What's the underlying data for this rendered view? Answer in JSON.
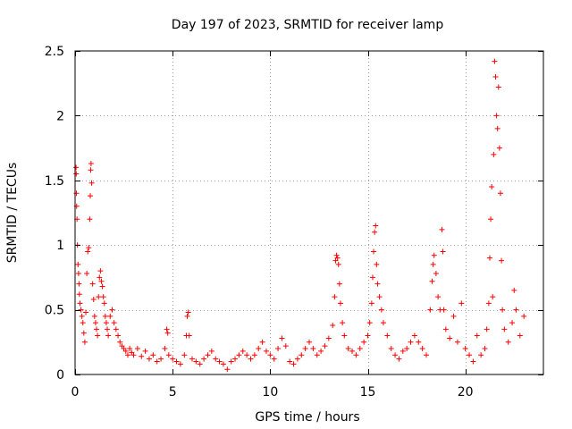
{
  "chart_data": {
    "type": "scatter",
    "title": "Day 197 of 2023, SRMTID for receiver lamp",
    "xlabel": "GPS time / hours",
    "ylabel": "SRMTID / TECUs",
    "xlim": [
      0,
      24
    ],
    "ylim": [
      0,
      2.5
    ],
    "xticks": [
      0,
      5,
      10,
      15,
      20
    ],
    "xtick_labels": [
      "0",
      "5",
      "10",
      "15",
      "20"
    ],
    "yticks": [
      0,
      0.5,
      1,
      1.5,
      2,
      2.5
    ],
    "ytick_labels": [
      "0",
      "0.5",
      "1",
      "1.5",
      "2",
      "2.5"
    ],
    "grid": true,
    "marker": "+",
    "series": [
      {
        "name": "SRMTID",
        "color": "#ff0000",
        "points": [
          [
            0.05,
            1.6
          ],
          [
            0.06,
            1.55
          ],
          [
            0.07,
            1.4
          ],
          [
            0.08,
            1.3
          ],
          [
            0.1,
            1.2
          ],
          [
            0.12,
            1.0
          ],
          [
            0.15,
            0.85
          ],
          [
            0.18,
            0.78
          ],
          [
            0.2,
            0.7
          ],
          [
            0.22,
            0.62
          ],
          [
            0.25,
            0.55
          ],
          [
            0.3,
            0.5
          ],
          [
            0.35,
            0.45
          ],
          [
            0.4,
            0.4
          ],
          [
            0.45,
            0.32
          ],
          [
            0.5,
            0.25
          ],
          [
            0.55,
            0.48
          ],
          [
            0.6,
            0.78
          ],
          [
            0.65,
            0.95
          ],
          [
            0.7,
            0.98
          ],
          [
            0.75,
            1.2
          ],
          [
            0.78,
            1.38
          ],
          [
            0.8,
            1.58
          ],
          [
            0.82,
            1.63
          ],
          [
            0.85,
            1.48
          ],
          [
            0.9,
            0.7
          ],
          [
            0.95,
            0.58
          ],
          [
            1.0,
            0.45
          ],
          [
            1.05,
            0.4
          ],
          [
            1.1,
            0.35
          ],
          [
            1.15,
            0.3
          ],
          [
            1.2,
            0.6
          ],
          [
            1.25,
            0.75
          ],
          [
            1.3,
            0.8
          ],
          [
            1.35,
            0.72
          ],
          [
            1.4,
            0.68
          ],
          [
            1.45,
            0.6
          ],
          [
            1.5,
            0.55
          ],
          [
            1.55,
            0.45
          ],
          [
            1.6,
            0.4
          ],
          [
            1.65,
            0.35
          ],
          [
            1.7,
            0.3
          ],
          [
            1.8,
            0.45
          ],
          [
            1.9,
            0.5
          ],
          [
            2.0,
            0.4
          ],
          [
            2.1,
            0.35
          ],
          [
            2.2,
            0.3
          ],
          [
            2.3,
            0.25
          ],
          [
            2.4,
            0.22
          ],
          [
            2.5,
            0.2
          ],
          [
            2.6,
            0.18
          ],
          [
            2.7,
            0.15
          ],
          [
            2.8,
            0.2
          ],
          [
            2.9,
            0.17
          ],
          [
            3.0,
            0.15
          ],
          [
            3.2,
            0.2
          ],
          [
            3.4,
            0.14
          ],
          [
            3.6,
            0.18
          ],
          [
            3.8,
            0.12
          ],
          [
            4.0,
            0.15
          ],
          [
            4.2,
            0.1
          ],
          [
            4.4,
            0.12
          ],
          [
            4.6,
            0.2
          ],
          [
            4.7,
            0.35
          ],
          [
            4.75,
            0.32
          ],
          [
            4.8,
            0.15
          ],
          [
            5.0,
            0.12
          ],
          [
            5.2,
            0.1
          ],
          [
            5.4,
            0.08
          ],
          [
            5.6,
            0.15
          ],
          [
            5.7,
            0.3
          ],
          [
            5.75,
            0.45
          ],
          [
            5.8,
            0.48
          ],
          [
            5.85,
            0.3
          ],
          [
            6.0,
            0.12
          ],
          [
            6.2,
            0.1
          ],
          [
            6.4,
            0.08
          ],
          [
            6.6,
            0.12
          ],
          [
            6.8,
            0.15
          ],
          [
            7.0,
            0.18
          ],
          [
            7.2,
            0.12
          ],
          [
            7.4,
            0.1
          ],
          [
            7.6,
            0.08
          ],
          [
            7.8,
            0.04
          ],
          [
            8.0,
            0.1
          ],
          [
            8.2,
            0.12
          ],
          [
            8.4,
            0.15
          ],
          [
            8.6,
            0.18
          ],
          [
            8.8,
            0.15
          ],
          [
            9.0,
            0.12
          ],
          [
            9.2,
            0.15
          ],
          [
            9.4,
            0.2
          ],
          [
            9.6,
            0.25
          ],
          [
            9.8,
            0.18
          ],
          [
            10.0,
            0.15
          ],
          [
            10.2,
            0.12
          ],
          [
            10.4,
            0.2
          ],
          [
            10.6,
            0.28
          ],
          [
            10.8,
            0.22
          ],
          [
            11.0,
            0.1
          ],
          [
            11.2,
            0.08
          ],
          [
            11.4,
            0.12
          ],
          [
            11.6,
            0.15
          ],
          [
            11.8,
            0.2
          ],
          [
            12.0,
            0.25
          ],
          [
            12.2,
            0.2
          ],
          [
            12.4,
            0.15
          ],
          [
            12.6,
            0.18
          ],
          [
            12.8,
            0.22
          ],
          [
            13.0,
            0.28
          ],
          [
            13.2,
            0.38
          ],
          [
            13.3,
            0.6
          ],
          [
            13.35,
            0.88
          ],
          [
            13.4,
            0.92
          ],
          [
            13.45,
            0.9
          ],
          [
            13.5,
            0.85
          ],
          [
            13.55,
            0.7
          ],
          [
            13.6,
            0.55
          ],
          [
            13.7,
            0.4
          ],
          [
            13.8,
            0.3
          ],
          [
            14.0,
            0.2
          ],
          [
            14.2,
            0.18
          ],
          [
            14.4,
            0.15
          ],
          [
            14.6,
            0.2
          ],
          [
            14.8,
            0.25
          ],
          [
            15.0,
            0.3
          ],
          [
            15.1,
            0.4
          ],
          [
            15.2,
            0.55
          ],
          [
            15.25,
            0.75
          ],
          [
            15.3,
            0.95
          ],
          [
            15.35,
            1.1
          ],
          [
            15.4,
            1.15
          ],
          [
            15.45,
            0.85
          ],
          [
            15.5,
            0.7
          ],
          [
            15.6,
            0.6
          ],
          [
            15.7,
            0.5
          ],
          [
            15.8,
            0.4
          ],
          [
            16.0,
            0.3
          ],
          [
            16.2,
            0.2
          ],
          [
            16.4,
            0.15
          ],
          [
            16.6,
            0.12
          ],
          [
            16.8,
            0.18
          ],
          [
            17.0,
            0.2
          ],
          [
            17.2,
            0.25
          ],
          [
            17.4,
            0.3
          ],
          [
            17.6,
            0.25
          ],
          [
            17.8,
            0.2
          ],
          [
            18.0,
            0.15
          ],
          [
            18.2,
            0.5
          ],
          [
            18.3,
            0.72
          ],
          [
            18.35,
            0.85
          ],
          [
            18.4,
            0.92
          ],
          [
            18.5,
            0.78
          ],
          [
            18.6,
            0.6
          ],
          [
            18.7,
            0.5
          ],
          [
            18.8,
            1.12
          ],
          [
            18.85,
            0.95
          ],
          [
            18.9,
            0.5
          ],
          [
            19.0,
            0.35
          ],
          [
            19.2,
            0.28
          ],
          [
            19.4,
            0.45
          ],
          [
            19.6,
            0.25
          ],
          [
            19.8,
            0.55
          ],
          [
            20.0,
            0.2
          ],
          [
            20.2,
            0.15
          ],
          [
            20.4,
            0.1
          ],
          [
            20.6,
            0.3
          ],
          [
            20.8,
            0.15
          ],
          [
            21.0,
            0.2
          ],
          [
            21.1,
            0.35
          ],
          [
            21.2,
            0.55
          ],
          [
            21.25,
            0.9
          ],
          [
            21.3,
            1.2
          ],
          [
            21.35,
            1.45
          ],
          [
            21.4,
            0.6
          ],
          [
            21.45,
            1.7
          ],
          [
            21.5,
            2.42
          ],
          [
            21.55,
            2.3
          ],
          [
            21.6,
            2.0
          ],
          [
            21.65,
            1.9
          ],
          [
            21.7,
            2.22
          ],
          [
            21.75,
            1.75
          ],
          [
            21.8,
            1.4
          ],
          [
            21.85,
            0.88
          ],
          [
            21.9,
            0.5
          ],
          [
            22.0,
            0.35
          ],
          [
            22.2,
            0.25
          ],
          [
            22.4,
            0.4
          ],
          [
            22.5,
            0.65
          ],
          [
            22.6,
            0.5
          ],
          [
            22.8,
            0.3
          ],
          [
            23.0,
            0.45
          ]
        ]
      }
    ]
  }
}
